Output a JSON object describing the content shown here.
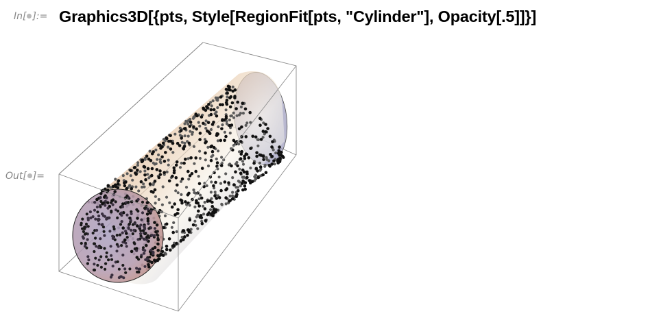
{
  "notebook": {
    "input_label": "In[",
    "input_label_end": "]:=",
    "output_label": "Out[",
    "output_label_end": "]=",
    "input_code": "Graphics3D[{pts, Style[RegionFit[pts, \"Cylinder\"], Opacity[.5]]}]"
  },
  "graphic": {
    "type": "Graphics3D",
    "object": "cylinder",
    "opacity": 0.5,
    "point_color": "#000000",
    "box_color": "#8c8c8c",
    "surface_colors": {
      "warm": "#c8906e",
      "light": "#f5f0e8",
      "cool": "#9a9ac0"
    }
  }
}
